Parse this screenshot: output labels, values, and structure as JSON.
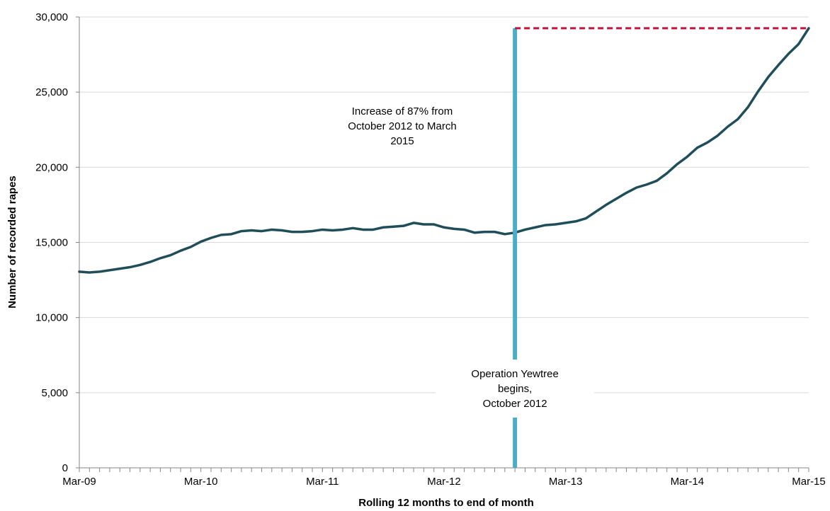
{
  "chart_data": {
    "type": "line",
    "xlabel": "Rolling 12 months to end of month",
    "ylabel": "Number of recorded rapes",
    "ylim": [
      0,
      30000
    ],
    "yticks": [
      0,
      5000,
      10000,
      15000,
      20000,
      25000,
      30000
    ],
    "yticklabels": [
      "0",
      "5,000",
      "10,000",
      "15,000",
      "20,000",
      "25,000",
      "30,000"
    ],
    "xticklabels": [
      "Mar-09",
      "Mar-10",
      "Mar-11",
      "Mar-12",
      "Mar-13",
      "Mar-14",
      "Mar-15"
    ],
    "x_start": "Mar-09",
    "x_end": "Mar-15",
    "grid": "horizontal",
    "line_color": "#1f4e5a",
    "event_line_color": "#4bacc6",
    "reference_line_color": "#c0143c",
    "series": [
      {
        "values": [
          13050,
          13000,
          13050,
          13150,
          13250,
          13350,
          13500,
          13700,
          13950,
          14150,
          14450,
          14700,
          15050,
          15300,
          15500,
          15550,
          15750,
          15800,
          15750,
          15850,
          15800,
          15700,
          15700,
          15750,
          15850,
          15800,
          15850,
          15950,
          15850,
          15850,
          16000,
          16050,
          16100,
          16300,
          16200,
          16200,
          16000,
          15900,
          15850,
          15650,
          15700,
          15700,
          15550,
          15650,
          15850,
          16000,
          16150,
          16200,
          16300,
          16400,
          16600,
          17050,
          17500,
          17900,
          18300,
          18650,
          18850,
          19100,
          19600,
          20200,
          20700,
          21300,
          21650,
          22100,
          22700,
          23200,
          24000,
          25050,
          26000,
          26800,
          27550,
          28200,
          29250
        ]
      }
    ],
    "event": {
      "x": "Oct-12",
      "label": [
        "Operation Yewtree",
        "begins,",
        "October 2012"
      ]
    },
    "reference": {
      "from_x": "Oct-12",
      "to_x": "Mar-15",
      "y": 29250
    },
    "annotation": {
      "lines": [
        "Increase of 87% from",
        "October 2012 to March",
        "2015"
      ]
    }
  }
}
